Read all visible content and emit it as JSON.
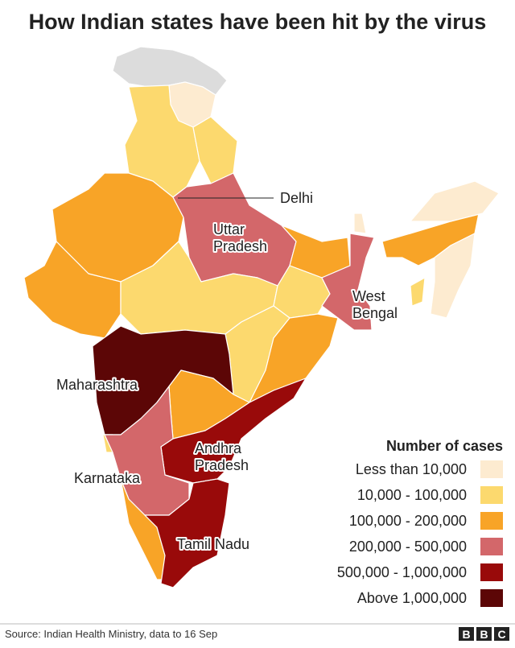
{
  "title": "How Indian states have been hit by the virus",
  "map_labels": [
    {
      "lines": [
        "Delhi"
      ]
    },
    {
      "lines": [
        "Uttar",
        "Pradesh"
      ]
    },
    {
      "lines": [
        "West",
        "Bengal"
      ]
    },
    {
      "lines": [
        "Maharashtra"
      ]
    },
    {
      "lines": [
        "Karnataka"
      ]
    },
    {
      "lines": [
        "Andhra",
        "Pradesh"
      ]
    },
    {
      "lines": [
        "Tamil Nadu"
      ]
    }
  ],
  "legend": {
    "title": "Number of cases",
    "items": [
      {
        "label": "Less than 10,000",
        "color": "#fdebd0"
      },
      {
        "label": "10,000 - 100,000",
        "color": "#fcd96e"
      },
      {
        "label": "100,000 - 200,000",
        "color": "#f8a427"
      },
      {
        "label": "200,000 - 500,000",
        "color": "#d3676a"
      },
      {
        "label": "500,000 - 1,000,000",
        "color": "#990a0a"
      },
      {
        "label": "Above  1,000,000",
        "color": "#5c0606"
      }
    ]
  },
  "source": "Source: Indian Health Ministry, data to 16 Sep",
  "logo": [
    "B",
    "B",
    "C"
  ]
}
